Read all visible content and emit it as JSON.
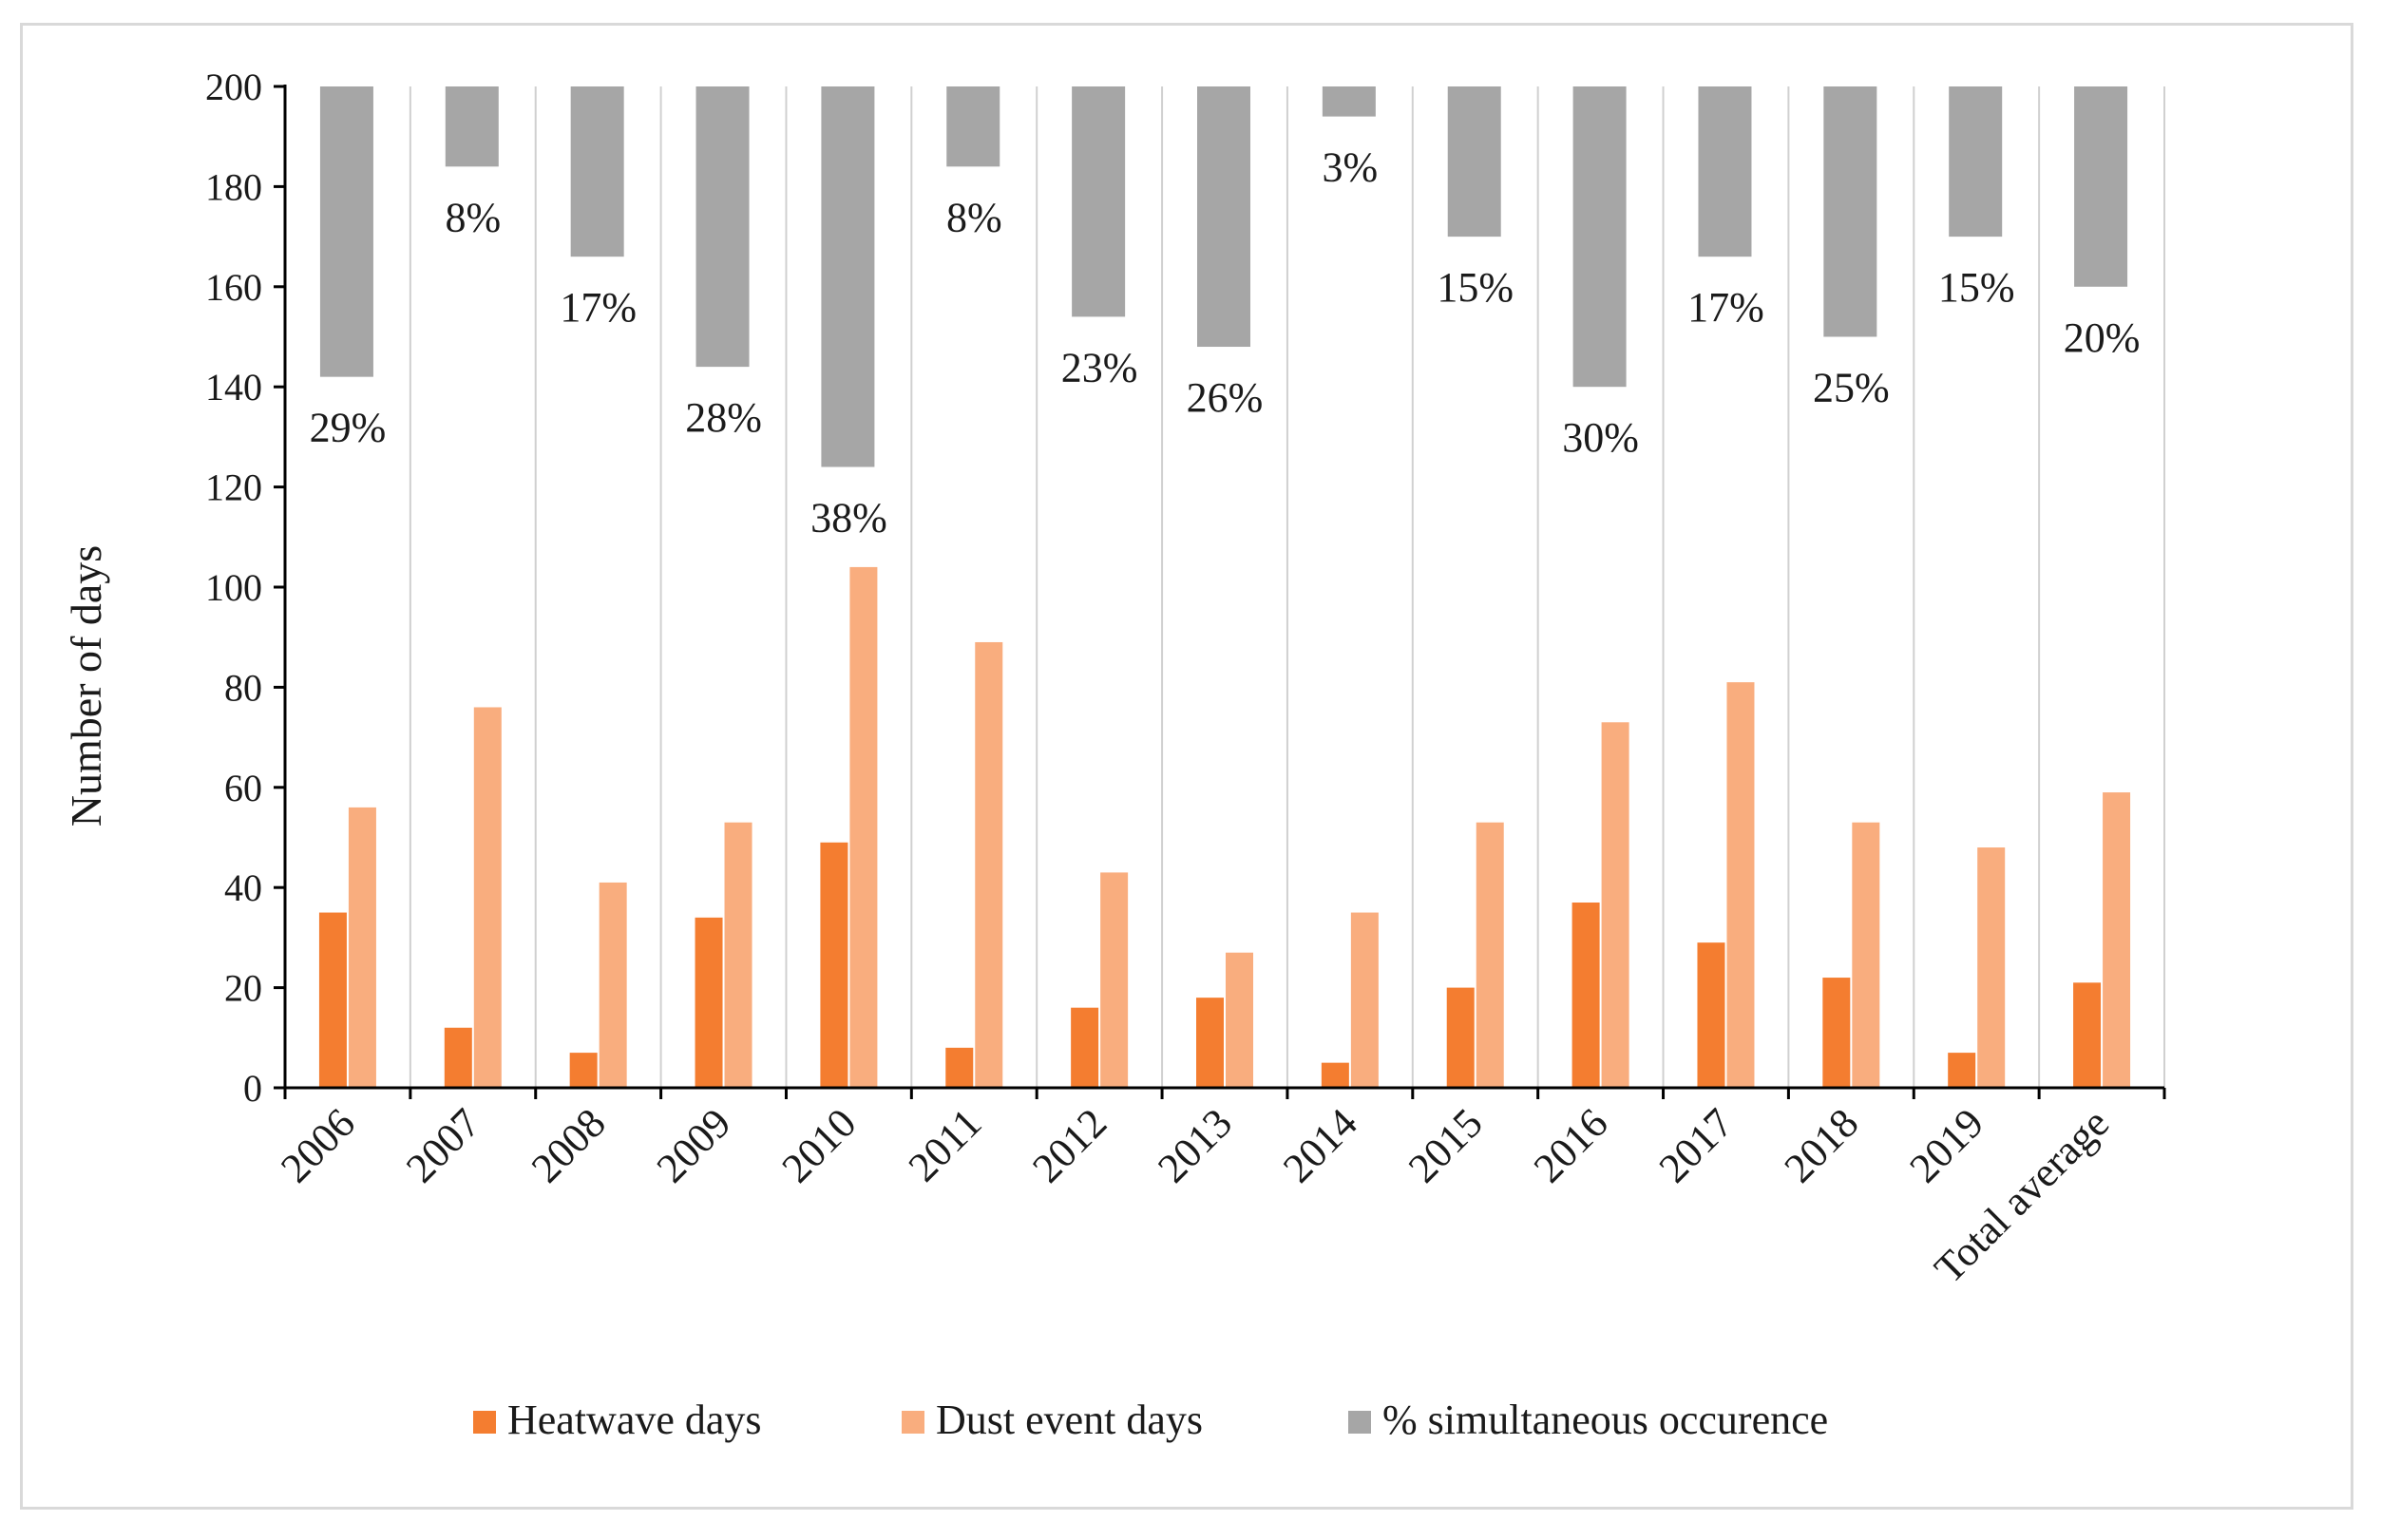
{
  "chart_data": {
    "type": "bar",
    "title": "",
    "xlabel": "",
    "ylabel": "Number of days",
    "ylim": [
      0,
      200
    ],
    "yticks": [
      0,
      20,
      40,
      60,
      80,
      100,
      120,
      140,
      160,
      180,
      200
    ],
    "grid": "vertical",
    "legend_position": "bottom",
    "categories": [
      "2006",
      "2007",
      "2008",
      "2009",
      "2010",
      "2011",
      "2012",
      "2013",
      "2014",
      "2015",
      "2016",
      "2017",
      "2018",
      "2019",
      "Total average"
    ],
    "series": [
      {
        "name": "Heatwave days",
        "color": "#f47d30",
        "values": [
          35,
          12,
          7,
          34,
          49,
          8,
          16,
          18,
          5,
          20,
          37,
          29,
          22,
          7,
          21
        ]
      },
      {
        "name": "Dust event days",
        "color": "#f9ad7e",
        "values": [
          56,
          76,
          41,
          53,
          104,
          89,
          43,
          27,
          35,
          53,
          73,
          81,
          53,
          48,
          59
        ]
      },
      {
        "name": "% simultaneous occurence",
        "color": "#a6a6a6",
        "orientation": "hanging from top (200 days axis)",
        "values": [
          29,
          8,
          17,
          28,
          38,
          8,
          23,
          26,
          3,
          15,
          30,
          17,
          25,
          15,
          20
        ],
        "labels": [
          "29%",
          "8%",
          "17%",
          "28%",
          "38%",
          "8%",
          "23%",
          "26%",
          "3%",
          "15%",
          "30%",
          "17%",
          "25%",
          "15%",
          "20%"
        ]
      }
    ]
  }
}
